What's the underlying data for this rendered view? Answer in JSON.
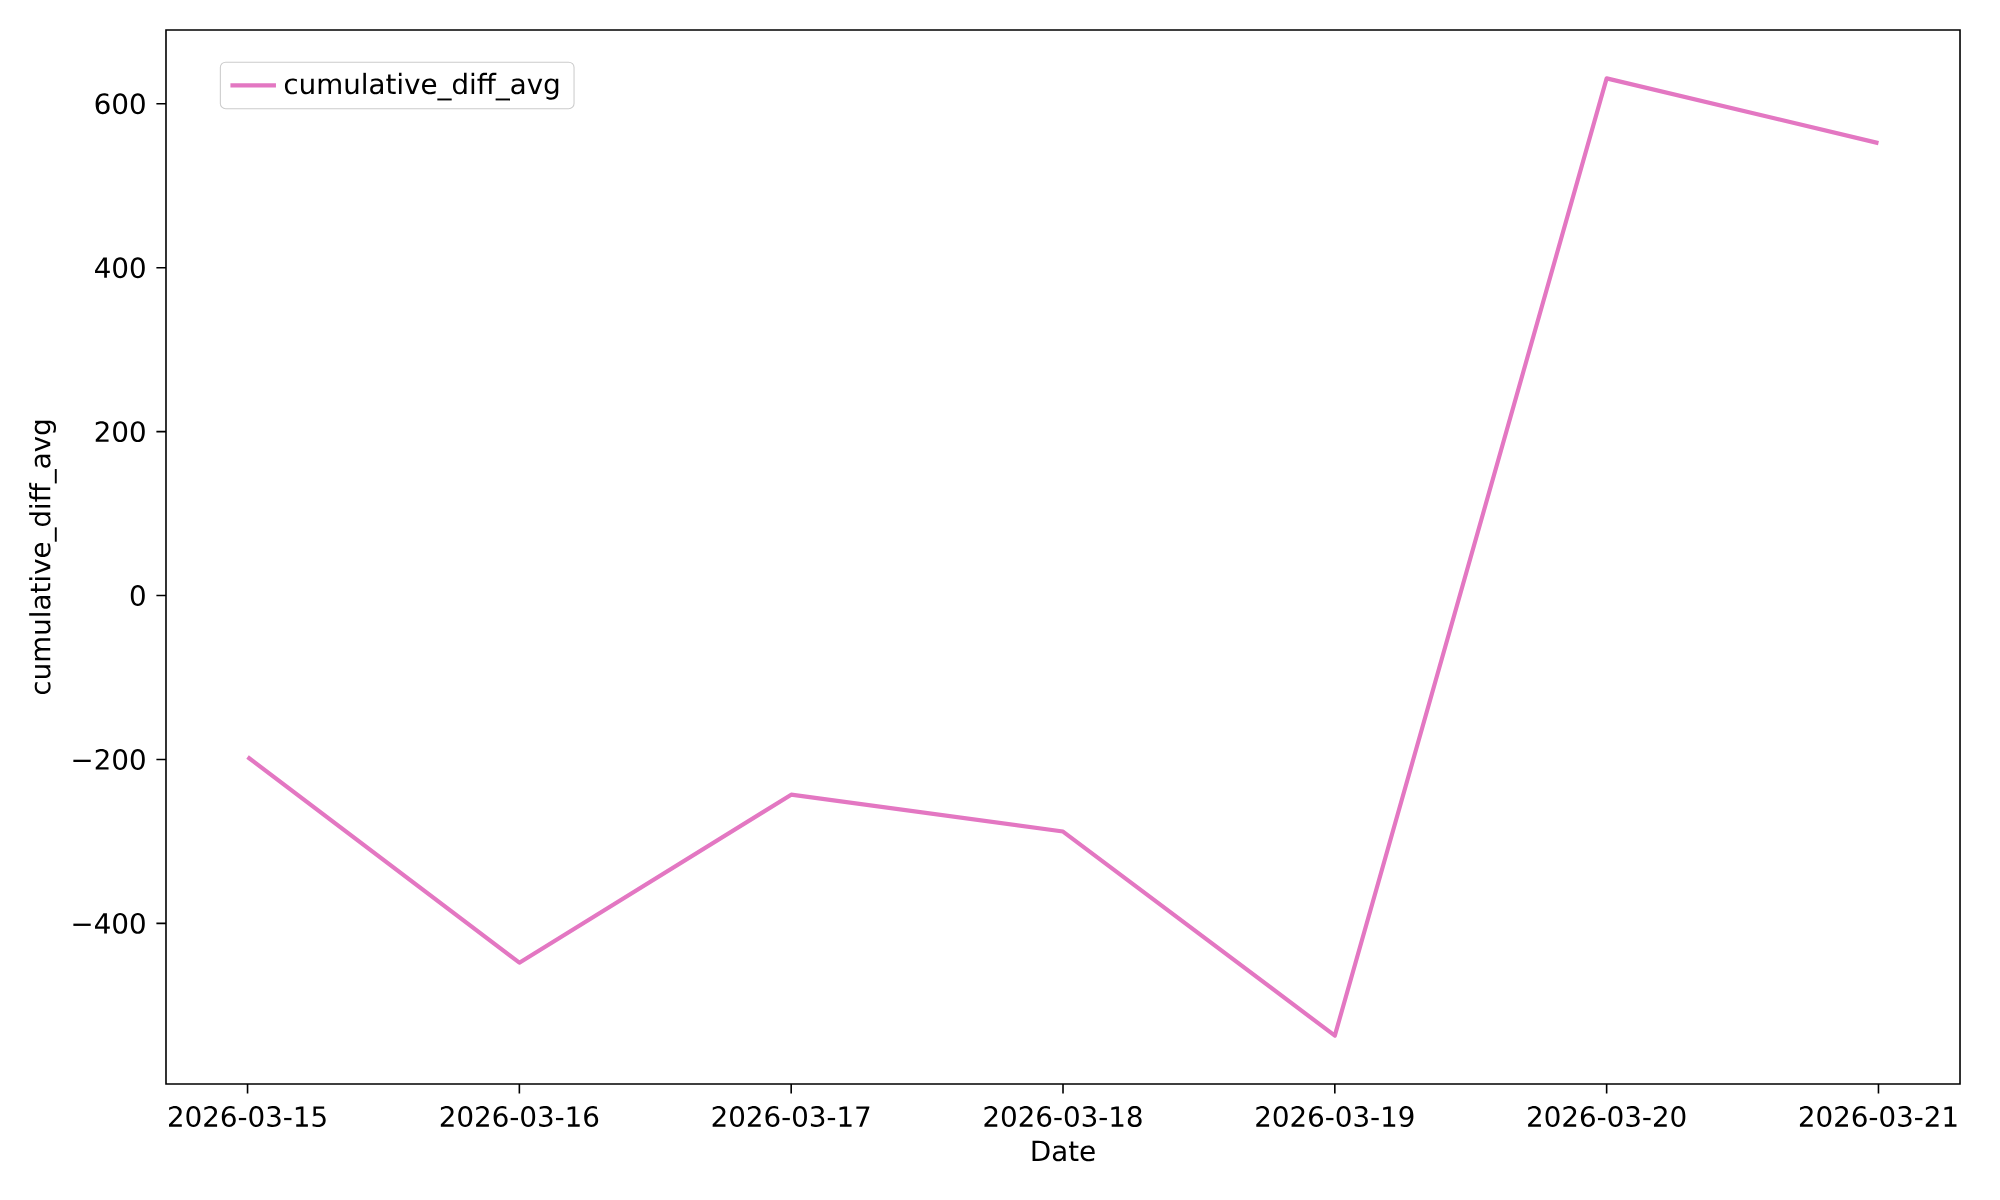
{
  "chart_data": {
    "type": "line",
    "xlabel": "Date",
    "ylabel": "cumulative_diff_avg",
    "x": [
      "2026-03-15",
      "2026-03-16",
      "2026-03-17",
      "2026-03-18",
      "2026-03-19",
      "2026-03-20",
      "2026-03-21"
    ],
    "series": [
      {
        "name": "cumulative_diff_avg",
        "color": "#e377c2",
        "values": [
          -197,
          -448,
          -243,
          -288,
          -537,
          631,
          552
        ]
      }
    ],
    "xlim": [
      "2026-03-14T16:48",
      "2026-03-21T07:12"
    ],
    "xticks": [
      "2026-03-15",
      "2026-03-16",
      "2026-03-17",
      "2026-03-18",
      "2026-03-19",
      "2026-03-20",
      "2026-03-21"
    ],
    "ylim": [
      -596,
      690
    ],
    "yticks": [
      {
        "value": -400,
        "label": "−400"
      },
      {
        "value": -200,
        "label": "−200"
      },
      0,
      200,
      400,
      600
    ],
    "legend": "top left",
    "line_style": "solid",
    "marker": "none"
  }
}
